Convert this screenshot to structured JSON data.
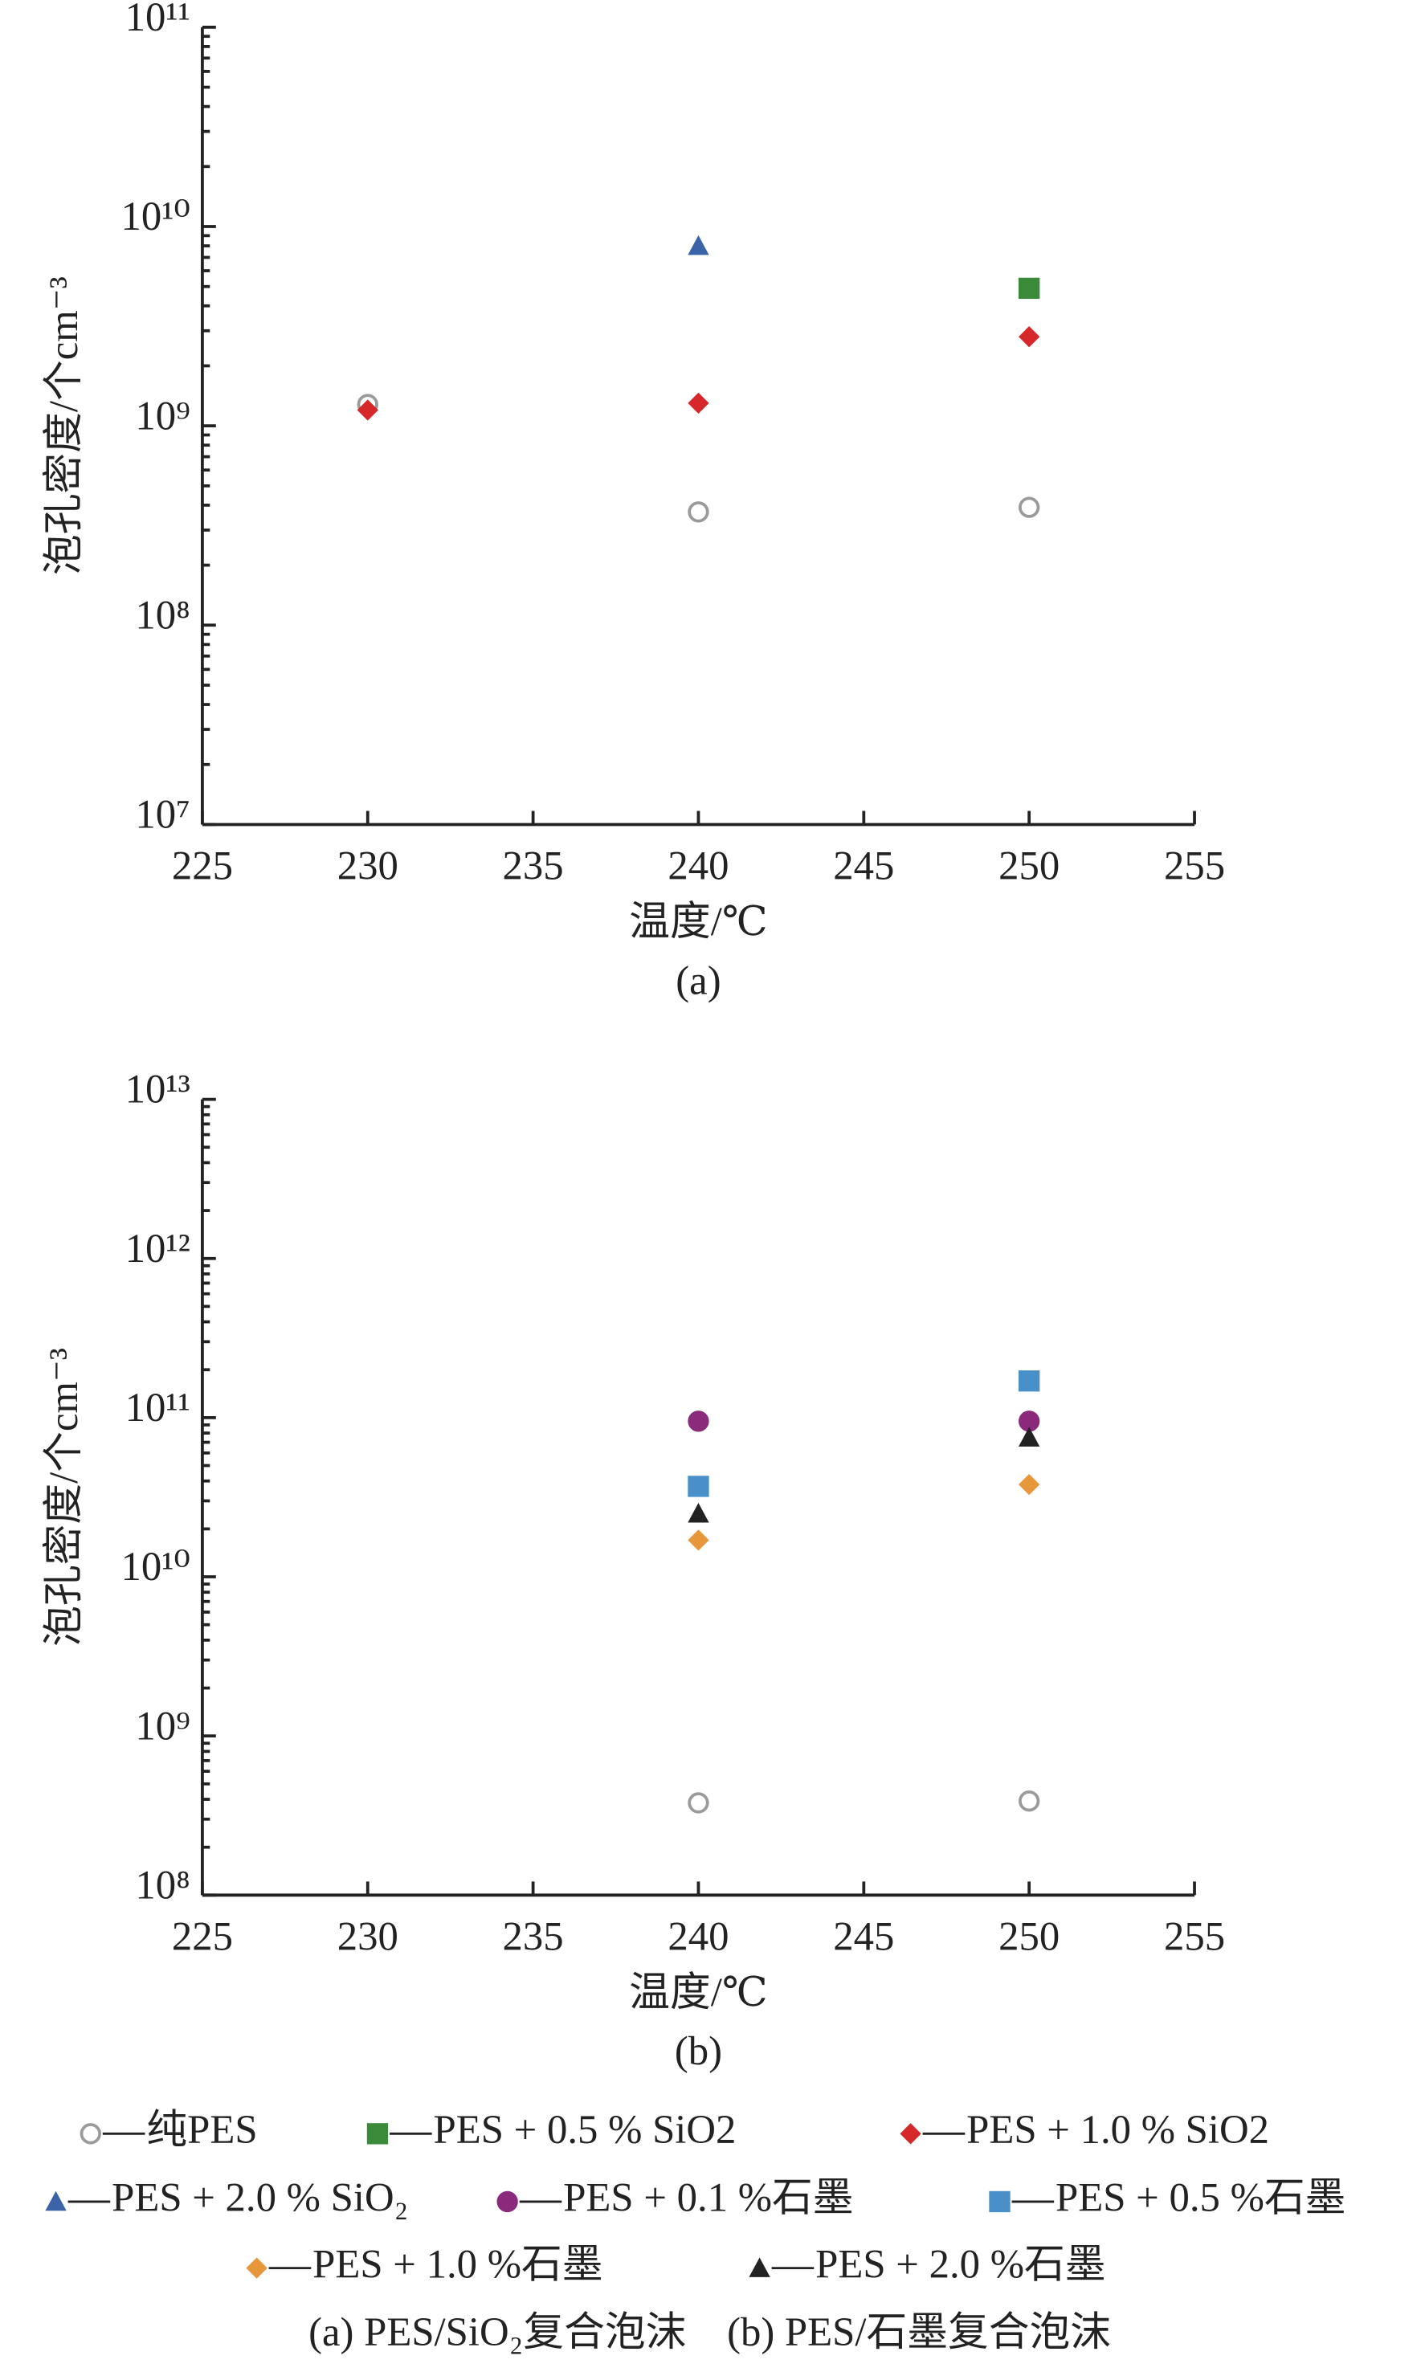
{
  "chart_data": [
    {
      "type": "scatter",
      "subtitle": "(a)",
      "xlabel": "温度/℃",
      "ylabel": "泡孔密度/个cm⁻³",
      "ylog": true,
      "xlim": [
        225,
        255
      ],
      "xticks": [
        225,
        230,
        235,
        240,
        245,
        250,
        255
      ],
      "ylim": [
        10000000,
        100000000000
      ],
      "yticks": [
        {
          "value": 10000000,
          "label": "10⁷"
        },
        {
          "value": 100000000,
          "label": "10⁸"
        },
        {
          "value": 1000000000,
          "label": "10⁹"
        },
        {
          "value": 10000000000,
          "label": "10¹⁰"
        },
        {
          "value": 100000000000,
          "label": "10¹¹"
        }
      ],
      "series": [
        {
          "name": "纯PES",
          "color": "#9a9a9a",
          "marker": "open-circle",
          "x": [
            230,
            240,
            250
          ],
          "values": [
            1280000000,
            370000000,
            390000000
          ]
        },
        {
          "name": "PES + 0.5 % SiO2",
          "color": "#3a8a3a",
          "marker": "square",
          "x": [
            250
          ],
          "values": [
            4900000000
          ]
        },
        {
          "name": "PES + 1.0 % SiO2",
          "color": "#d6282b",
          "marker": "diamond",
          "x": [
            230,
            240,
            250
          ],
          "values": [
            1200000000,
            1300000000,
            2800000000
          ]
        },
        {
          "name": "PES + 2.0 % SiO₂",
          "color": "#3a63a8",
          "marker": "triangle",
          "x": [
            240
          ],
          "values": [
            8000000000
          ]
        }
      ]
    },
    {
      "type": "scatter",
      "subtitle": "(b)",
      "xlabel": "温度/℃",
      "ylabel": "泡孔密度/个cm⁻³",
      "ylog": true,
      "xlim": [
        225,
        255
      ],
      "xticks": [
        225,
        230,
        235,
        240,
        245,
        250,
        255
      ],
      "ylim": [
        100000000,
        10000000000000
      ],
      "yticks": [
        {
          "value": 100000000,
          "label": "10⁸"
        },
        {
          "value": 1000000000,
          "label": "10⁹"
        },
        {
          "value": 10000000000,
          "label": "10¹⁰"
        },
        {
          "value": 100000000000,
          "label": "10¹¹"
        },
        {
          "value": 1000000000000,
          "label": "10¹²"
        },
        {
          "value": 10000000000000,
          "label": "10¹³"
        }
      ],
      "series": [
        {
          "name": "纯PES",
          "color": "#9a9a9a",
          "marker": "open-circle",
          "x": [
            240,
            250
          ],
          "values": [
            380000000,
            390000000
          ]
        },
        {
          "name": "PES + 0.1 %石墨",
          "color": "#8b2a7a",
          "marker": "circle",
          "x": [
            240,
            250
          ],
          "values": [
            95000000000,
            95000000000
          ]
        },
        {
          "name": "PES + 0.5 %石墨",
          "color": "#4a90c8",
          "marker": "square",
          "x": [
            240,
            250
          ],
          "values": [
            37000000000,
            170000000000
          ]
        },
        {
          "name": "PES + 1.0 %石墨",
          "color": "#e8963a",
          "marker": "diamond",
          "x": [
            240,
            250
          ],
          "values": [
            17000000000,
            38000000000
          ]
        },
        {
          "name": "PES + 2.0 %石墨",
          "color": "#222222",
          "marker": "triangle",
          "x": [
            240,
            250
          ],
          "values": [
            25000000000,
            75000000000
          ]
        }
      ]
    }
  ],
  "caption": "(a) PES/SiO₂复合泡沫　(b) PES/石墨复合泡沫"
}
